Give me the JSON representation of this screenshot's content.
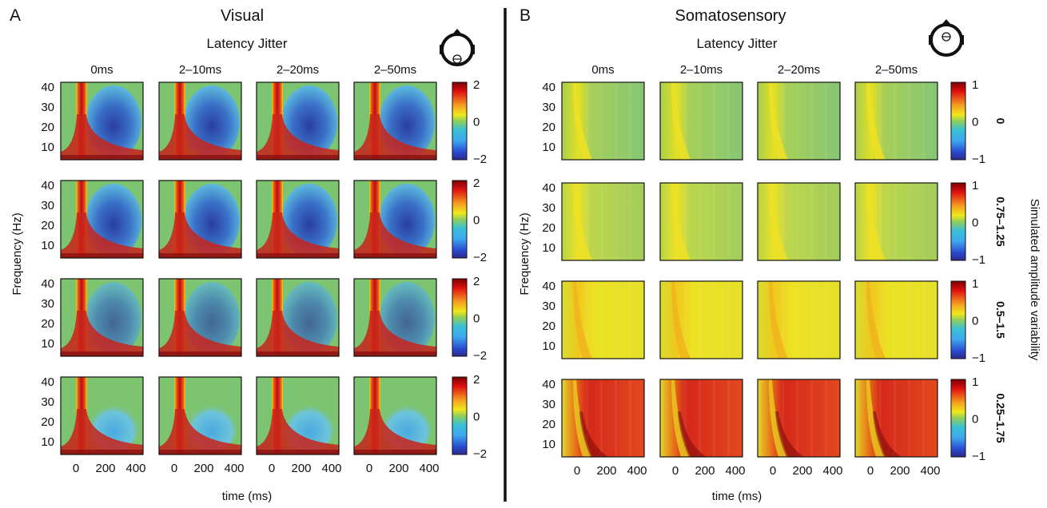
{
  "panels": [
    {
      "letter": "A",
      "title": "Visual",
      "subtitle": "Latency Jitter",
      "columns": [
        "0ms",
        "2–10ms",
        "2–20ms",
        "2–50ms"
      ],
      "y_axis_label": "Frequency (Hz)",
      "x_axis_label": "time (ms)",
      "y_ticks": [
        "40",
        "30",
        "20",
        "10"
      ],
      "x_ticks": [
        "0",
        "200",
        "400"
      ],
      "colorbar_ticks": [
        "2",
        "0",
        "−2"
      ],
      "head_icon": "head-icon-occipital-electrode"
    },
    {
      "letter": "B",
      "title": "Somatosensory",
      "subtitle": "Latency Jitter",
      "columns": [
        "0ms",
        "2–10ms",
        "2–20ms",
        "2–50ms"
      ],
      "y_axis_label": "Frequency (Hz)",
      "x_axis_label": "time (ms)",
      "y_ticks": [
        "40",
        "30",
        "20",
        "10"
      ],
      "x_ticks": [
        "0",
        "200",
        "400"
      ],
      "colorbar_ticks": [
        "1",
        "0",
        "−1"
      ],
      "head_icon": "head-icon-central-electrode"
    }
  ],
  "row_labels": [
    "0",
    "0.75–1.25",
    "0.5–1.5",
    "0.25–1.75"
  ],
  "side_label": "Simulated amplitude variability",
  "colors": {
    "divider": "#111111",
    "background_green": "#7cc470",
    "erp_red": "#c8231b",
    "erp_yellow": "#ecdd1a",
    "desync_blue": "#2a4ea8",
    "light_blue": "#52b8e6"
  }
}
